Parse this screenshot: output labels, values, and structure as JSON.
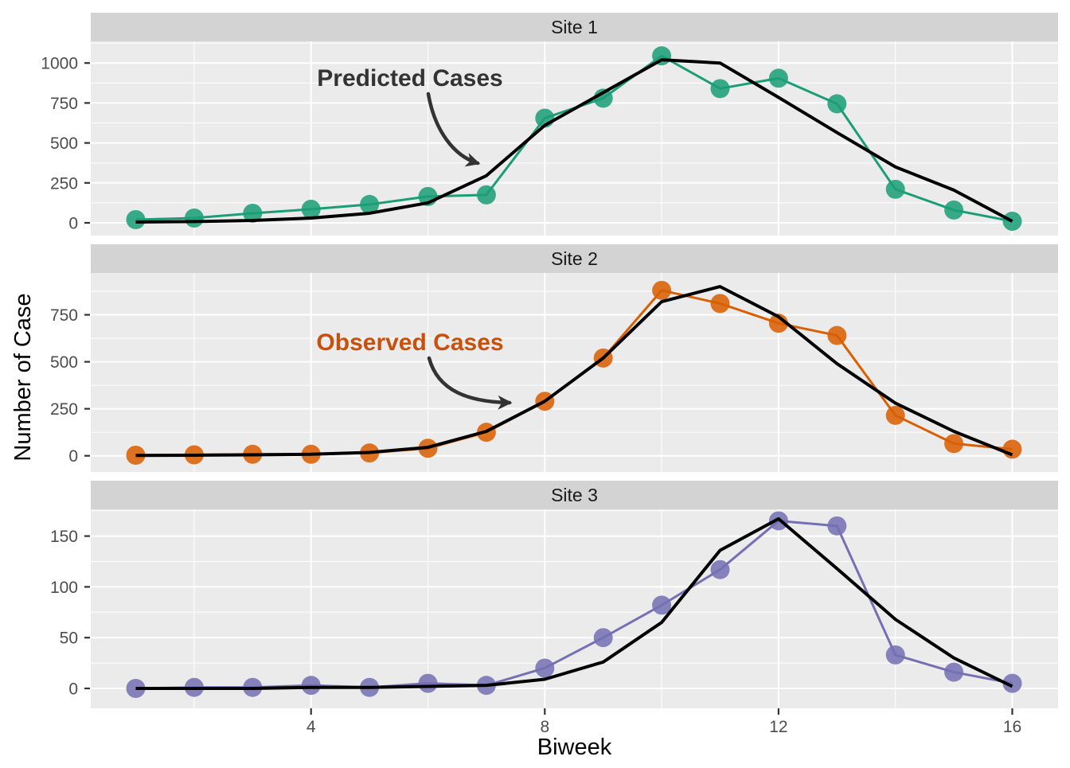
{
  "chart_data": {
    "type": "line",
    "facet_layout": "3 stacked panels sharing x axis",
    "x_label": "Biweek",
    "y_label": "Number of Case",
    "x": [
      1,
      2,
      3,
      4,
      5,
      6,
      7,
      8,
      9,
      10,
      11,
      12,
      13,
      14,
      15,
      16
    ],
    "x_major_ticks": [
      4,
      8,
      12,
      16
    ],
    "x_minor_ticks": [
      2,
      6,
      10,
      14
    ],
    "legend_position": "none (annotated directly on plot)",
    "grid": true,
    "panels": [
      {
        "title": "Site 1",
        "color": "#1B9E77",
        "ylim": [
          -60,
          1110
        ],
        "y_major_ticks": [
          0,
          250,
          500,
          750,
          1000
        ],
        "y_minor_ticks": [
          125,
          375,
          625,
          875,
          1125
        ],
        "observed": [
          20,
          30,
          60,
          85,
          115,
          165,
          175,
          655,
          780,
          1045,
          840,
          905,
          745,
          210,
          80,
          10
        ],
        "predicted": [
          5,
          8,
          15,
          30,
          60,
          125,
          295,
          610,
          815,
          1020,
          1000,
          785,
          565,
          350,
          205,
          10
        ]
      },
      {
        "title": "Site 2",
        "color": "#D95F02",
        "ylim": [
          -85,
          975
        ],
        "y_major_ticks": [
          0,
          250,
          500,
          750
        ],
        "y_minor_ticks": [
          125,
          375,
          625,
          875
        ],
        "observed": [
          3,
          5,
          8,
          8,
          15,
          40,
          125,
          290,
          520,
          880,
          810,
          705,
          640,
          215,
          65,
          35
        ],
        "predicted": [
          2,
          3,
          5,
          8,
          18,
          45,
          130,
          290,
          520,
          820,
          900,
          740,
          490,
          280,
          130,
          5
        ]
      },
      {
        "title": "Site 3",
        "color": "#7570B3",
        "ylim": [
          -20,
          176
        ],
        "y_major_ticks": [
          0,
          50,
          100,
          150
        ],
        "y_minor_ticks": [
          25,
          75,
          125,
          175
        ],
        "observed": [
          0,
          1,
          1,
          3,
          1,
          5,
          3,
          20,
          50,
          82,
          117,
          165,
          160,
          33,
          16,
          5
        ],
        "predicted": [
          0,
          0,
          0,
          1,
          1,
          2,
          3,
          9,
          26,
          65,
          136,
          167,
          118,
          68,
          30,
          2
        ]
      }
    ],
    "series_meaning": {
      "observed": "colored points + colored line",
      "predicted": "black line"
    },
    "annotations": [
      {
        "text": "Predicted Cases",
        "color": "#333333",
        "panel": "Site 1"
      },
      {
        "text": "Observed Cases",
        "color": "#C8500A",
        "panel": "Site 2"
      }
    ],
    "style": {
      "panel_bg": "#EBEBEB",
      "strip_bg": "#D3D3D3",
      "grid_color": "#FFFFFF",
      "tick_label_color": "#4D4D4D",
      "predicted_line_color": "#000000"
    }
  }
}
